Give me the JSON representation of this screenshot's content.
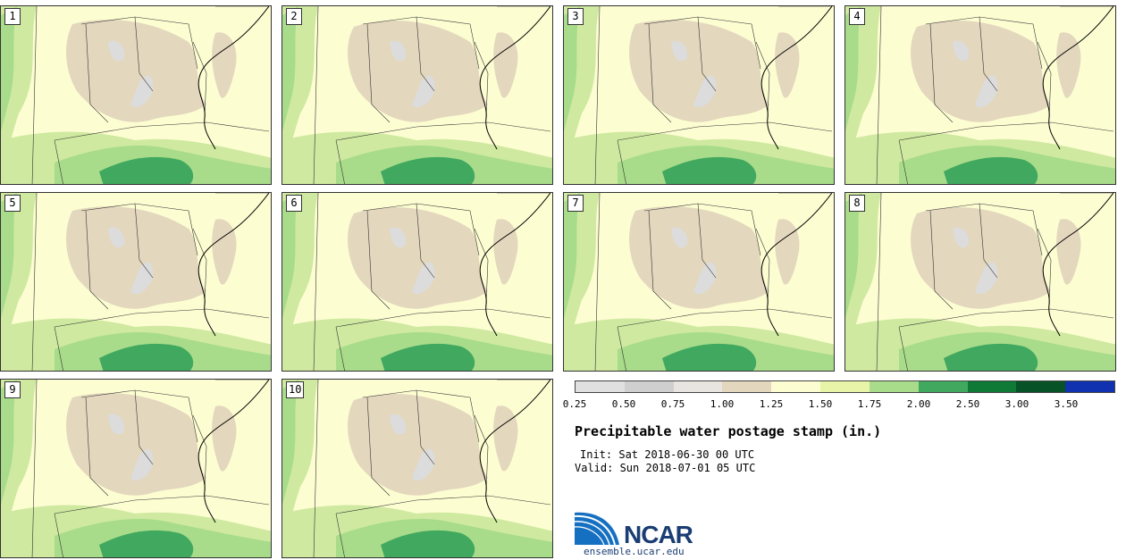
{
  "panels": [
    {
      "label": "1"
    },
    {
      "label": "2"
    },
    {
      "label": "3"
    },
    {
      "label": "4"
    },
    {
      "label": "5"
    },
    {
      "label": "6"
    },
    {
      "label": "7"
    },
    {
      "label": "8"
    },
    {
      "label": "9"
    },
    {
      "label": "10"
    }
  ],
  "colorbar": {
    "colors": [
      "#e0e0e0",
      "#cfcfcf",
      "#e8e4e0",
      "#e3d7bd",
      "#fdfdd2",
      "#e8f5a8",
      "#a8dc8a",
      "#41a85f",
      "#0e7a35",
      "#075227",
      "#1032b0"
    ],
    "ticks": [
      "0.25",
      "0.50",
      "0.75",
      "1.00",
      "1.25",
      "1.50",
      "1.75",
      "2.00",
      "2.50",
      "3.00",
      "3.50"
    ]
  },
  "title": "Precipitable water postage stamp (in.)",
  "init": "Init: Sat 2018-06-30 00 UTC",
  "valid": "Valid: Sun 2018-07-01 05 UTC",
  "logo": {
    "text": "NCAR",
    "url": "ensemble.ucar.edu"
  }
}
